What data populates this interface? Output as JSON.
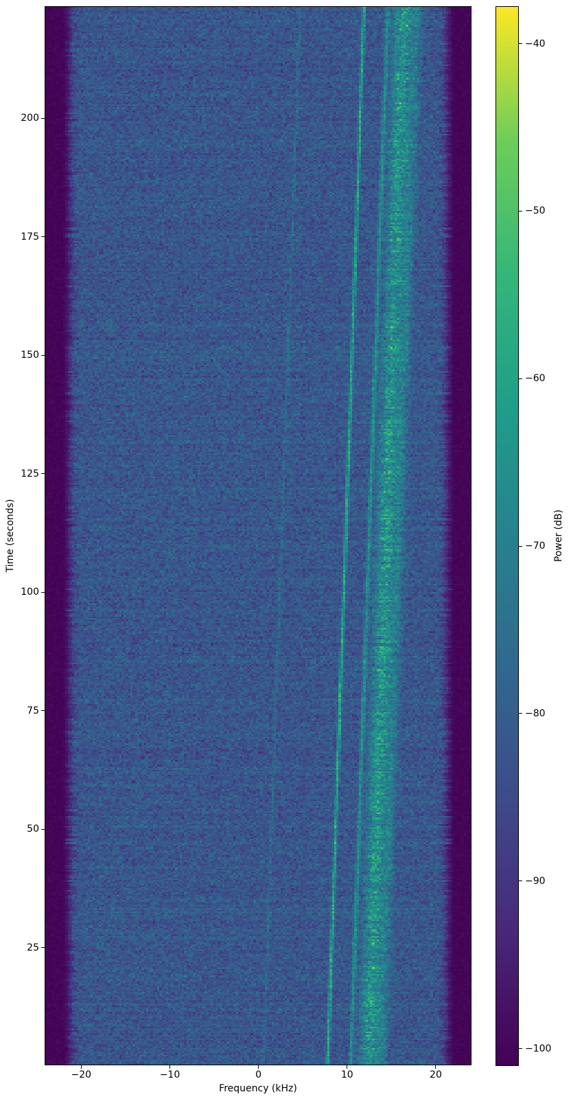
{
  "chart_data": {
    "type": "heatmap",
    "subtype": "spectrogram-waterfall",
    "title": "",
    "xlabel": "Frequency (kHz)",
    "ylabel": "Time (seconds)",
    "colorbar_label": "Power (dB)",
    "colormap": "viridis",
    "colormap_stops": [
      "#440154",
      "#482878",
      "#3e4a89",
      "#31688e",
      "#26828e",
      "#1f9e89",
      "#35b779",
      "#6ece58",
      "#fde725"
    ],
    "x_range_khz": [
      -24.05,
      23.95
    ],
    "y_range_s": [
      0.3,
      223.5
    ],
    "value_range_db": [
      -101.0,
      -37.8
    ],
    "grid": false,
    "legend": null,
    "x_ticks": [
      {
        "value": -20,
        "label": "−20"
      },
      {
        "value": -10,
        "label": "−10"
      },
      {
        "value": 0,
        "label": "0"
      },
      {
        "value": 10,
        "label": "10"
      },
      {
        "value": 20,
        "label": "20"
      }
    ],
    "y_ticks": [
      {
        "value": 25,
        "label": "25"
      },
      {
        "value": 50,
        "label": "50"
      },
      {
        "value": 75,
        "label": "75"
      },
      {
        "value": 100,
        "label": "100"
      },
      {
        "value": 125,
        "label": "125"
      },
      {
        "value": 150,
        "label": "150"
      },
      {
        "value": 175,
        "label": "175"
      },
      {
        "value": 200,
        "label": "200"
      }
    ],
    "colorbar_ticks": [
      {
        "value": -40,
        "label": "−40"
      },
      {
        "value": -50,
        "label": "−50"
      },
      {
        "value": -60,
        "label": "−60"
      },
      {
        "value": -70,
        "label": "−70"
      },
      {
        "value": -80,
        "label": "−80"
      },
      {
        "value": -90,
        "label": "−90"
      },
      {
        "value": -100,
        "label": "−100"
      }
    ],
    "background_noise_db": {
      "mean": -82,
      "std": 3.4
    },
    "band_edge_rolloff": {
      "passband_half_width_khz": 20.3,
      "stopband_khz": 22.1,
      "floor_db": -100.3
    },
    "features": [
      {
        "name": "faint-low-carrier",
        "f_start_khz": 0.55,
        "f_end_khz": 4.7,
        "width_khz": 0.12,
        "peak_db": -77,
        "diffuse": false
      },
      {
        "name": "main-carrier",
        "f_start_khz": 7.8,
        "f_end_khz": 11.9,
        "width_khz": 0.13,
        "peak_db": -59,
        "diffuse": false
      },
      {
        "name": "secondary-carrier",
        "f_start_khz": 10.4,
        "f_end_khz": 14.6,
        "width_khz": 0.16,
        "peak_db": -67,
        "diffuse": false
      },
      {
        "name": "wideband-signal",
        "f_start_khz": 12.45,
        "f_end_khz": 16.35,
        "width_khz": 0.8,
        "peak_db": -61,
        "diffuse": true
      },
      {
        "name": "upper-diffuse-band",
        "f_start_khz": 13.9,
        "f_end_khz": 17.9,
        "width_khz": 0.45,
        "peak_db": -73,
        "diffuse": true
      }
    ]
  }
}
